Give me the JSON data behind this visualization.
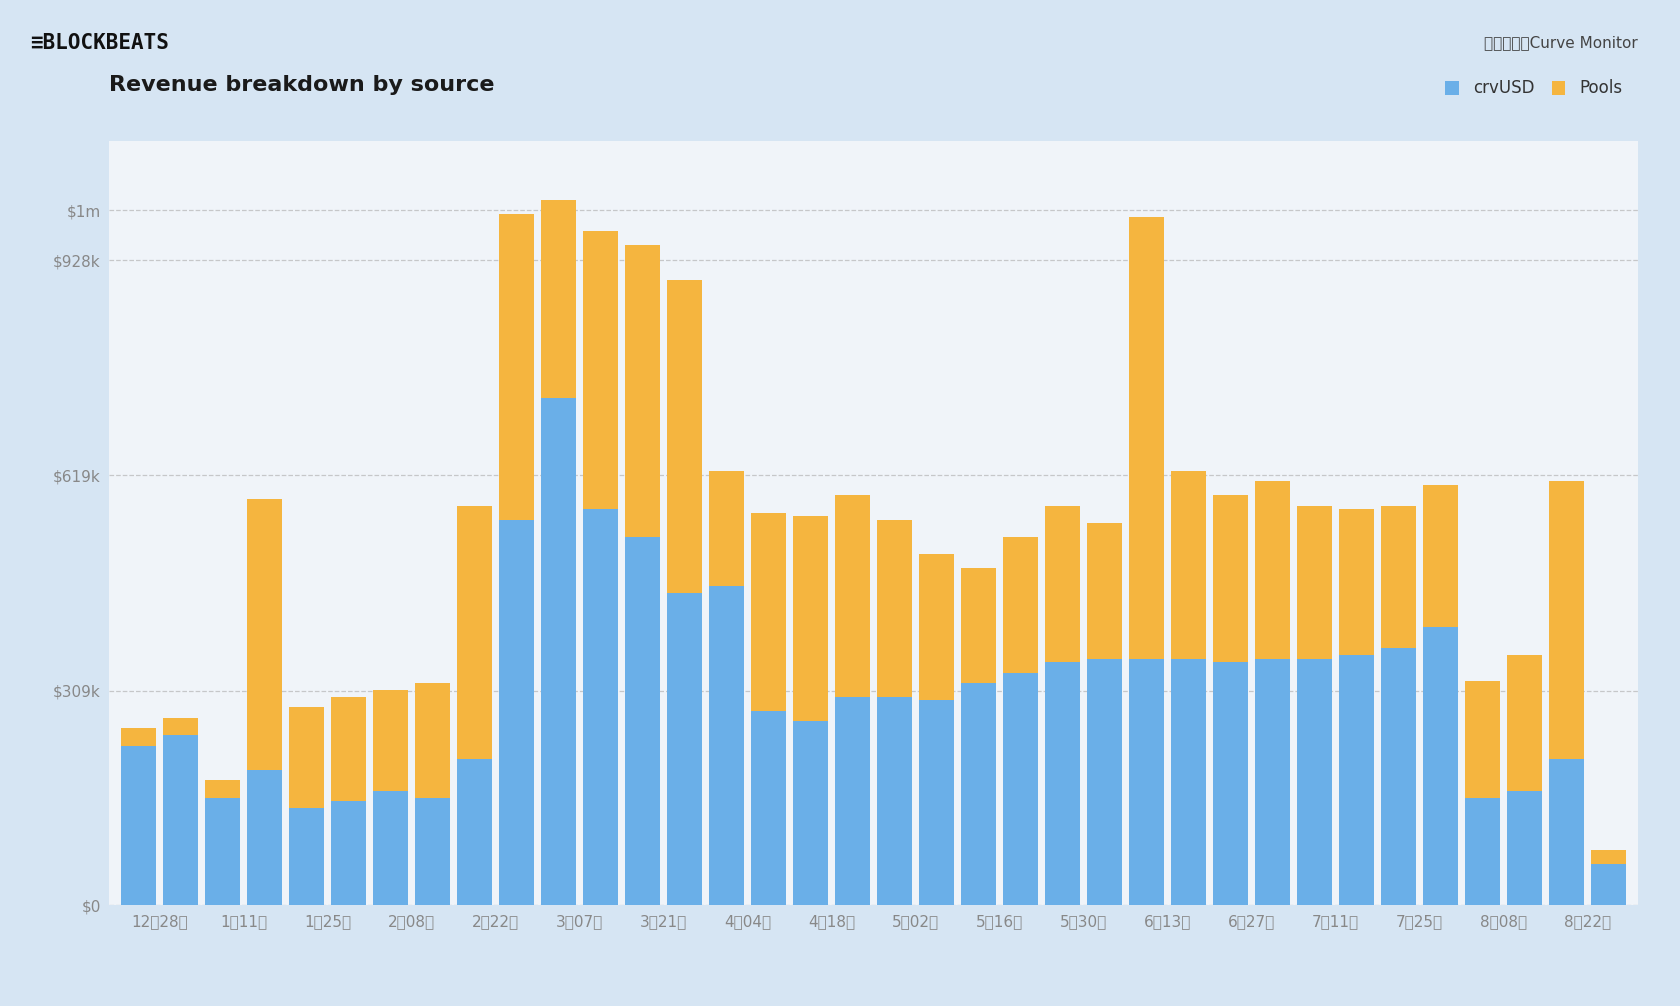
{
  "title": "Revenue breakdown by source",
  "source": "数据来源：Curve Monitor",
  "bar_color_crv": "#6aafe8",
  "bar_color_pools": "#f5b53f",
  "background_outer": "#d6e5f3",
  "background_inner": "#f0f4f9",
  "x_labels": [
    "12月28日",
    "1月11日",
    "1月25日",
    "2月08日",
    "2月22日",
    "3月07日",
    "3月21日",
    "4月04日",
    "4月18日",
    "5月02日",
    "5月16日",
    "5月30日",
    "6月13日",
    "6月27日",
    "7月11日",
    "7月25日",
    "8月08日",
    "8月22日"
  ],
  "crvusd_values": [
    230000,
    245000,
    155000,
    195000,
    140000,
    150000,
    165000,
    155000,
    210000,
    555000,
    730000,
    570000,
    530000,
    450000,
    460000,
    280000,
    265000,
    300000,
    300000,
    295000,
    320000,
    335000,
    350000,
    355000,
    355000,
    355000,
    350000,
    355000,
    355000,
    360000,
    370000,
    400000,
    155000,
    165000,
    210000,
    60000
  ],
  "pools_values": [
    25000,
    25000,
    25000,
    390000,
    145000,
    150000,
    145000,
    165000,
    365000,
    440000,
    285000,
    400000,
    420000,
    450000,
    165000,
    285000,
    295000,
    290000,
    255000,
    210000,
    165000,
    195000,
    225000,
    195000,
    635000,
    270000,
    240000,
    255000,
    220000,
    210000,
    205000,
    205000,
    168000,
    195000,
    400000,
    20000
  ],
  "yticks": [
    0,
    309000,
    619000,
    928000,
    1000000
  ],
  "ytick_labels": [
    "$0",
    "$309k",
    "$619k",
    "$928k",
    "$1m"
  ],
  "ylim": 1100000,
  "grid_color": "#aaaaaa",
  "title_fontsize": 16,
  "tick_fontsize": 11,
  "axis_label_color": "#888888"
}
